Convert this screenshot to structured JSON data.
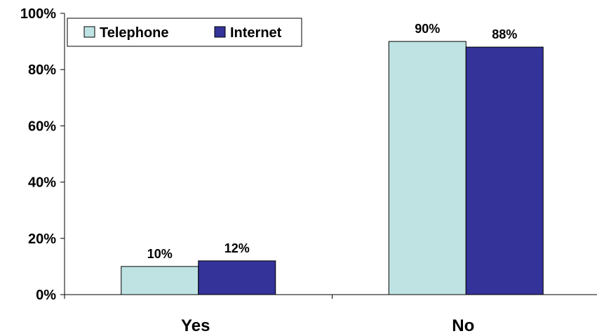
{
  "chart_data": {
    "type": "bar",
    "categories": [
      "Yes",
      "No"
    ],
    "series": [
      {
        "name": "Telephone",
        "values": [
          10,
          90
        ],
        "color": "#BFE3E3"
      },
      {
        "name": "Internet",
        "values": [
          12,
          88
        ],
        "color": "#333399"
      }
    ],
    "data_labels": [
      [
        "10%",
        "90%"
      ],
      [
        "12%",
        "88%"
      ]
    ],
    "y_ticks": [
      {
        "value": 0,
        "label": "0%"
      },
      {
        "value": 20,
        "label": "20%"
      },
      {
        "value": 40,
        "label": "40%"
      },
      {
        "value": 60,
        "label": "60%"
      },
      {
        "value": 80,
        "label": "80%"
      },
      {
        "value": 100,
        "label": "100%"
      }
    ],
    "ylim": [
      0,
      100
    ],
    "title": "",
    "xlabel": "",
    "ylabel": "",
    "grid": false,
    "legend_position": "top-left"
  }
}
